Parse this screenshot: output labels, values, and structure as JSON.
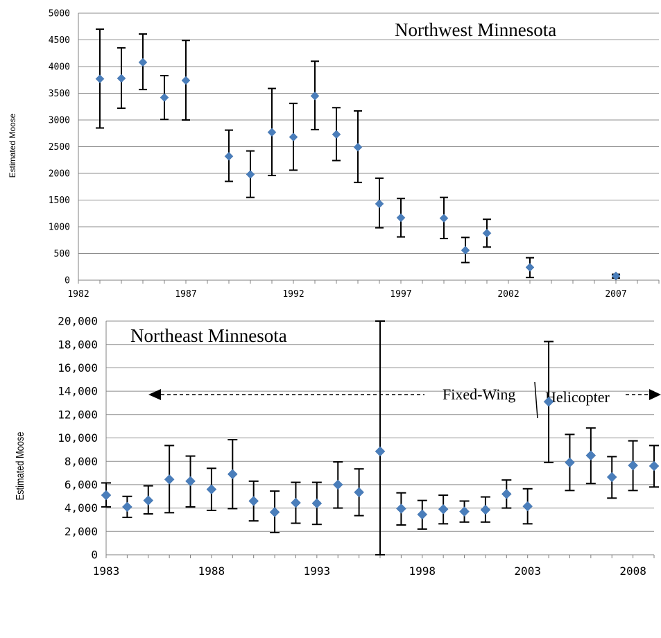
{
  "chart_data": [
    {
      "type": "scatter",
      "title": "Northwest Minnesota",
      "ylabel": "Estimated Moose",
      "xlabel": "",
      "xlim": [
        1982,
        2009
      ],
      "ylim": [
        0,
        5000
      ],
      "x_ticks": [
        "1982",
        "1987",
        "1992",
        "1997",
        "2002",
        "2007"
      ],
      "y_ticks": [
        "0",
        "500",
        "1000",
        "1500",
        "2000",
        "2500",
        "3000",
        "3500",
        "4000",
        "4500",
        "5000"
      ],
      "grid": true,
      "points": [
        {
          "x": 1983,
          "y": 3770,
          "low": 2850,
          "high": 4700
        },
        {
          "x": 1984,
          "y": 3780,
          "low": 3220,
          "high": 4350
        },
        {
          "x": 1985,
          "y": 4080,
          "low": 3570,
          "high": 4610
        },
        {
          "x": 1986,
          "y": 3420,
          "low": 3010,
          "high": 3830
        },
        {
          "x": 1987,
          "y": 3740,
          "low": 3000,
          "high": 4490
        },
        {
          "x": 1989,
          "y": 2320,
          "low": 1850,
          "high": 2810
        },
        {
          "x": 1990,
          "y": 1980,
          "low": 1550,
          "high": 2420
        },
        {
          "x": 1991,
          "y": 2770,
          "low": 1960,
          "high": 3590
        },
        {
          "x": 1992,
          "y": 2680,
          "low": 2060,
          "high": 3310
        },
        {
          "x": 1993,
          "y": 3450,
          "low": 2820,
          "high": 4100
        },
        {
          "x": 1994,
          "y": 2730,
          "low": 2240,
          "high": 3230
        },
        {
          "x": 1995,
          "y": 2490,
          "low": 1830,
          "high": 3170
        },
        {
          "x": 1996,
          "y": 1430,
          "low": 980,
          "high": 1910
        },
        {
          "x": 1997,
          "y": 1170,
          "low": 810,
          "high": 1530
        },
        {
          "x": 1999,
          "y": 1160,
          "low": 780,
          "high": 1550
        },
        {
          "x": 2000,
          "y": 560,
          "low": 330,
          "high": 800
        },
        {
          "x": 2001,
          "y": 880,
          "low": 620,
          "high": 1140
        },
        {
          "x": 2003,
          "y": 240,
          "low": 50,
          "high": 420
        },
        {
          "x": 2007,
          "y": 80,
          "low": 40,
          "high": 110
        }
      ]
    },
    {
      "type": "scatter",
      "title": "Northeast Minnesota",
      "ylabel": "Estimated Moose",
      "xlabel": "",
      "xlim": [
        1983,
        2009
      ],
      "ylim": [
        0,
        20000
      ],
      "x_ticks": [
        "1983",
        "1988",
        "1993",
        "1998",
        "2003",
        "2008"
      ],
      "y_ticks": [
        "0",
        "2,000",
        "4,000",
        "6,000",
        "8,000",
        "10,000",
        "12,000",
        "14,000",
        "16,000",
        "18,000",
        "20,000"
      ],
      "grid": true,
      "annotations": [
        "Fixed-Wing",
        "Helicopter"
      ],
      "points": [
        {
          "x": 1983,
          "y": 5100,
          "low": 4100,
          "high": 6150
        },
        {
          "x": 1984,
          "y": 4100,
          "low": 3200,
          "high": 5000
        },
        {
          "x": 1985,
          "y": 4650,
          "low": 3500,
          "high": 5900
        },
        {
          "x": 1986,
          "y": 6450,
          "low": 3600,
          "high": 9350
        },
        {
          "x": 1987,
          "y": 6300,
          "low": 4100,
          "high": 8450
        },
        {
          "x": 1988,
          "y": 5600,
          "low": 3800,
          "high": 7400
        },
        {
          "x": 1989,
          "y": 6900,
          "low": 3950,
          "high": 9850
        },
        {
          "x": 1990,
          "y": 4600,
          "low": 2900,
          "high": 6300
        },
        {
          "x": 1991,
          "y": 3650,
          "low": 1900,
          "high": 5450
        },
        {
          "x": 1992,
          "y": 4450,
          "low": 2700,
          "high": 6200
        },
        {
          "x": 1993,
          "y": 4400,
          "low": 2600,
          "high": 6200
        },
        {
          "x": 1994,
          "y": 6000,
          "low": 4000,
          "high": 7950
        },
        {
          "x": 1995,
          "y": 5350,
          "low": 3350,
          "high": 7350
        },
        {
          "x": 1996,
          "y": 8850,
          "low": 0,
          "high": 20000
        },
        {
          "x": 1997,
          "y": 3950,
          "low": 2550,
          "high": 5300
        },
        {
          "x": 1998,
          "y": 3450,
          "low": 2200,
          "high": 4650
        },
        {
          "x": 1999,
          "y": 3900,
          "low": 2650,
          "high": 5100
        },
        {
          "x": 2000,
          "y": 3700,
          "low": 2800,
          "high": 4600
        },
        {
          "x": 2001,
          "y": 3850,
          "low": 2800,
          "high": 4950
        },
        {
          "x": 2002,
          "y": 5200,
          "low": 4000,
          "high": 6400
        },
        {
          "x": 2003,
          "y": 4150,
          "low": 2650,
          "high": 5650
        },
        {
          "x": 2004,
          "y": 13100,
          "low": 7900,
          "high": 18250
        },
        {
          "x": 2005,
          "y": 7900,
          "low": 5500,
          "high": 10300
        },
        {
          "x": 2006,
          "y": 8500,
          "low": 6100,
          "high": 10850
        },
        {
          "x": 2007,
          "y": 6650,
          "low": 4850,
          "high": 8400
        },
        {
          "x": 2008,
          "y": 7650,
          "low": 5500,
          "high": 9750
        },
        {
          "x": 2009,
          "y": 7600,
          "low": 5800,
          "high": 9350
        }
      ]
    }
  ]
}
